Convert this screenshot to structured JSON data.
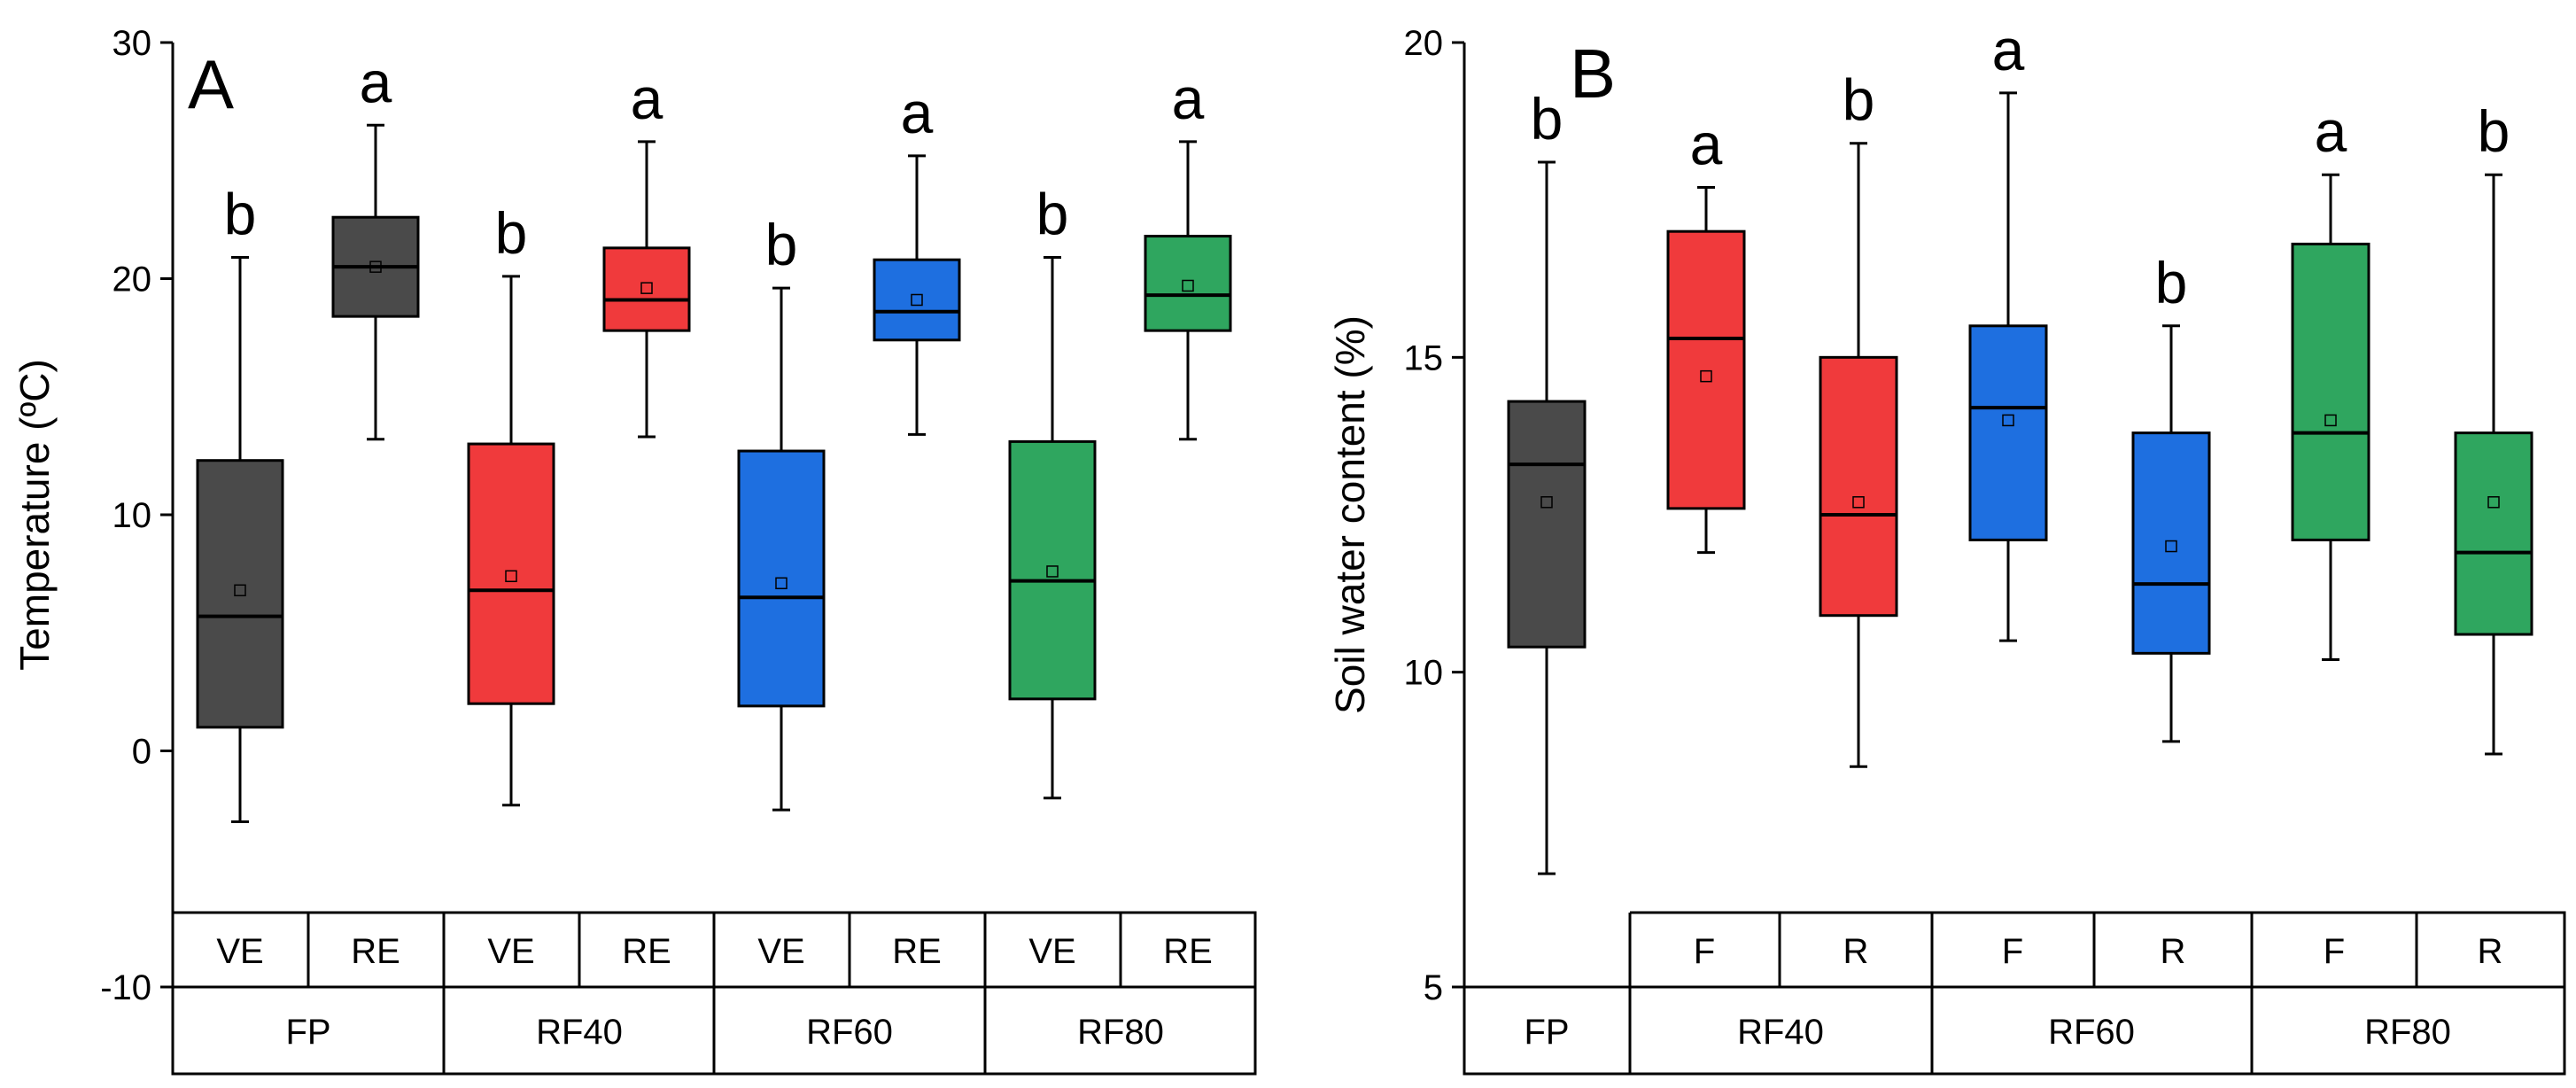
{
  "chart_data": [
    {
      "type": "box",
      "panel_label": "A",
      "ylabel": "Temperature (ºC)",
      "ylim": [
        -10,
        30
      ],
      "yticks": [
        "30",
        "20",
        "10",
        "0",
        "-10"
      ],
      "ytick_values": [
        30,
        20,
        10,
        0,
        -10
      ],
      "colors": {
        "FP": "#4a4a4a",
        "RF40": "#f03a3c",
        "RF60": "#1e6fe0",
        "RF80": "#2fa65f"
      },
      "boxes": [
        {
          "group": "FP",
          "sub": "VE",
          "min": -3.0,
          "q1": 1.0,
          "median": 5.7,
          "q3": 12.3,
          "max": 20.9,
          "mean": 6.8,
          "sig": "b"
        },
        {
          "group": "FP",
          "sub": "RE",
          "min": 13.2,
          "q1": 18.4,
          "median": 20.5,
          "q3": 22.6,
          "max": 26.5,
          "mean": 20.5,
          "sig": "a"
        },
        {
          "group": "RF40",
          "sub": "VE",
          "min": -2.3,
          "q1": 2.0,
          "median": 6.8,
          "q3": 13.0,
          "max": 20.1,
          "mean": 7.4,
          "sig": "b"
        },
        {
          "group": "RF40",
          "sub": "RE",
          "min": 13.3,
          "q1": 17.8,
          "median": 19.1,
          "q3": 21.3,
          "max": 25.8,
          "mean": 19.6,
          "sig": "a"
        },
        {
          "group": "RF60",
          "sub": "VE",
          "min": -2.5,
          "q1": 1.9,
          "median": 6.5,
          "q3": 12.7,
          "max": 19.6,
          "mean": 7.1,
          "sig": "b"
        },
        {
          "group": "RF60",
          "sub": "RE",
          "min": 13.4,
          "q1": 17.4,
          "median": 18.6,
          "q3": 20.8,
          "max": 25.2,
          "mean": 19.1,
          "sig": "a"
        },
        {
          "group": "RF80",
          "sub": "VE",
          "min": -2.0,
          "q1": 2.2,
          "median": 7.2,
          "q3": 13.1,
          "max": 20.9,
          "mean": 7.6,
          "sig": "b"
        },
        {
          "group": "RF80",
          "sub": "RE",
          "min": 13.2,
          "q1": 17.8,
          "median": 19.3,
          "q3": 21.8,
          "max": 25.8,
          "mean": 19.7,
          "sig": "a"
        }
      ],
      "sub_labels": [
        "VE",
        "RE",
        "VE",
        "RE",
        "VE",
        "RE",
        "VE",
        "RE"
      ],
      "group_labels": [
        "FP",
        "RF40",
        "RF60",
        "RF80"
      ]
    },
    {
      "type": "box",
      "panel_label": "B",
      "ylabel": "Soil water content (%)",
      "ylim": [
        5,
        20
      ],
      "yticks": [
        "20",
        "15",
        "10",
        "5"
      ],
      "ytick_values": [
        20,
        15,
        10,
        5
      ],
      "colors": {
        "FP": "#4a4a4a",
        "RF40": "#f03a3c",
        "RF60": "#1e6fe0",
        "RF80": "#2fa65f"
      },
      "boxes": [
        {
          "group": "FP",
          "sub": "",
          "min": 6.8,
          "q1": 10.4,
          "median": 13.3,
          "q3": 14.3,
          "max": 18.1,
          "mean": 12.7,
          "sig": "b"
        },
        {
          "group": "RF40",
          "sub": "F",
          "min": 11.9,
          "q1": 12.6,
          "median": 15.3,
          "q3": 17.0,
          "max": 17.7,
          "mean": 14.7,
          "sig": "a"
        },
        {
          "group": "RF40",
          "sub": "R",
          "min": 8.5,
          "q1": 10.9,
          "median": 12.5,
          "q3": 15.0,
          "max": 18.4,
          "mean": 12.7,
          "sig": "b"
        },
        {
          "group": "RF60",
          "sub": "F",
          "min": 10.5,
          "q1": 12.1,
          "median": 14.2,
          "q3": 15.5,
          "max": 19.2,
          "mean": 14.0,
          "sig": "a"
        },
        {
          "group": "RF60",
          "sub": "R",
          "min": 8.9,
          "q1": 10.3,
          "median": 11.4,
          "q3": 13.8,
          "max": 15.5,
          "mean": 12.0,
          "sig": "b"
        },
        {
          "group": "RF80",
          "sub": "F",
          "min": 10.2,
          "q1": 12.1,
          "median": 13.8,
          "q3": 16.8,
          "max": 17.9,
          "mean": 14.0,
          "sig": "a"
        },
        {
          "group": "RF80",
          "sub": "R",
          "min": 8.7,
          "q1": 10.6,
          "median": 11.9,
          "q3": 13.8,
          "max": 17.9,
          "mean": 12.7,
          "sig": "b"
        }
      ],
      "sub_labels": [
        "F",
        "R",
        "F",
        "R",
        "F",
        "R"
      ],
      "group_labels": [
        "FP",
        "RF40",
        "RF60",
        "RF80"
      ]
    }
  ]
}
